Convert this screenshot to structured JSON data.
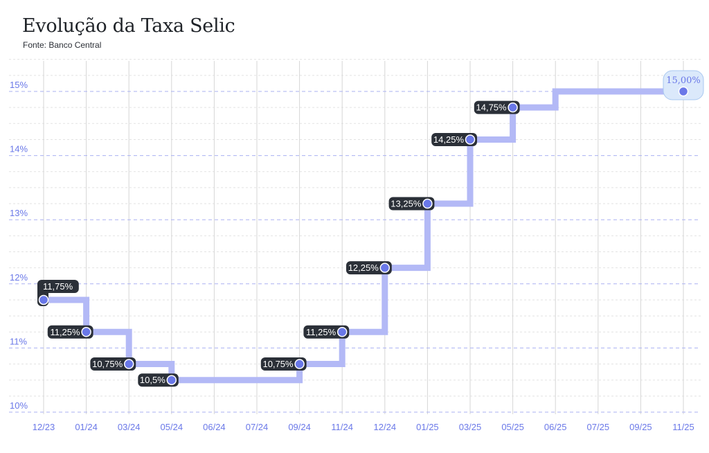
{
  "title": "Evolução da Taxa Selic",
  "subtitle": "Fonte: Banco Central",
  "colors": {
    "accent": "#6a78e8",
    "line": "#b3b9f6",
    "label_bg": "#2b3038",
    "last_label_bg": "#dbe9fb",
    "grid_major": "#aab0f2",
    "grid_minor": "#e2e2e2"
  },
  "chart_data": {
    "type": "line",
    "step": true,
    "ylim": [
      10,
      15.5
    ],
    "yticks": [
      "10%",
      "11%",
      "12%",
      "13%",
      "14%",
      "15%"
    ],
    "ytick_values": [
      10,
      11,
      12,
      13,
      14,
      15
    ],
    "categories": [
      "12/23",
      "01/24",
      "03/24",
      "05/24",
      "06/24",
      "07/24",
      "09/24",
      "11/24",
      "12/24",
      "01/25",
      "03/25",
      "05/25",
      "06/25",
      "07/25",
      "09/25",
      "11/25"
    ],
    "values": [
      11.75,
      11.25,
      10.75,
      10.5,
      10.5,
      10.5,
      10.75,
      11.25,
      12.25,
      13.25,
      14.25,
      14.75,
      15.0,
      15.0,
      15.0,
      15.0
    ],
    "points": [
      {
        "x": "12/23",
        "y": 11.75,
        "label": "11,75%"
      },
      {
        "x": "01/24",
        "y": 11.25,
        "label": "11,25%"
      },
      {
        "x": "03/24",
        "y": 10.75,
        "label": "10,75%"
      },
      {
        "x": "05/24",
        "y": 10.5,
        "label": "10,5%"
      },
      {
        "x": "09/24",
        "y": 10.75,
        "label": "10,75%"
      },
      {
        "x": "11/24",
        "y": 11.25,
        "label": "11,25%"
      },
      {
        "x": "12/24",
        "y": 12.25,
        "label": "12,25%"
      },
      {
        "x": "01/25",
        "y": 13.25,
        "label": "13,25%"
      },
      {
        "x": "03/25",
        "y": 14.25,
        "label": "14,25%"
      },
      {
        "x": "05/25",
        "y": 14.75,
        "label": "14,75%"
      },
      {
        "x": "11/25",
        "y": 15.0,
        "label": "15,00%"
      }
    ]
  }
}
